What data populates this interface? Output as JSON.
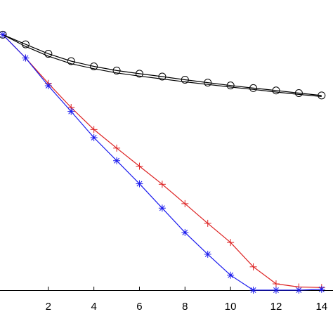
{
  "chart_data": {
    "type": "line",
    "title": "",
    "xlabel": "",
    "ylabel": "",
    "xlim": [
      0,
      14.5
    ],
    "ylim": [
      0,
      1
    ],
    "xticks": [
      2,
      4,
      6,
      8,
      10,
      12,
      14
    ],
    "xtick_labels": [
      "2",
      "4",
      "6",
      "8",
      "10",
      "12",
      "14"
    ],
    "grid": false,
    "legend": "none",
    "series": [
      {
        "color": "#000000",
        "marker": "none",
        "x": [
          0,
          1,
          2,
          3,
          4,
          5,
          6,
          7,
          8,
          9,
          10,
          11,
          12,
          13,
          14
        ],
        "y": [
          0.975,
          0.93,
          0.893,
          0.864,
          0.845,
          0.829,
          0.817,
          0.806,
          0.795,
          0.785,
          0.775,
          0.766,
          0.756,
          0.747,
          0.739
        ]
      },
      {
        "color": "#000000",
        "marker": "circle",
        "x": [
          0,
          1,
          2,
          3,
          4,
          5,
          6,
          7,
          8,
          9,
          10,
          11,
          12,
          13,
          14
        ],
        "y": [
          0.975,
          0.938,
          0.902,
          0.874,
          0.854,
          0.838,
          0.826,
          0.815,
          0.803,
          0.792,
          0.781,
          0.771,
          0.762,
          0.752,
          0.743
        ]
      },
      {
        "color": "#dd2222",
        "marker": "plus",
        "x": [
          0,
          1,
          2,
          3,
          4,
          5,
          6,
          7,
          8,
          9,
          10,
          11,
          12,
          13,
          14
        ],
        "y": [
          0.975,
          0.886,
          0.789,
          0.697,
          0.613,
          0.542,
          0.473,
          0.404,
          0.33,
          0.255,
          0.182,
          0.089,
          0.024,
          0.012,
          0.01
        ]
      },
      {
        "color": "#1a1aee",
        "marker": "asterisk",
        "x": [
          0,
          1,
          2,
          3,
          4,
          5,
          6,
          7,
          8,
          9,
          10,
          11,
          12,
          13,
          14
        ],
        "y": [
          0.975,
          0.886,
          0.78,
          0.682,
          0.582,
          0.494,
          0.406,
          0.313,
          0.22,
          0.137,
          0.057,
          0.0,
          0.0,
          0.0,
          0.003
        ]
      }
    ]
  }
}
